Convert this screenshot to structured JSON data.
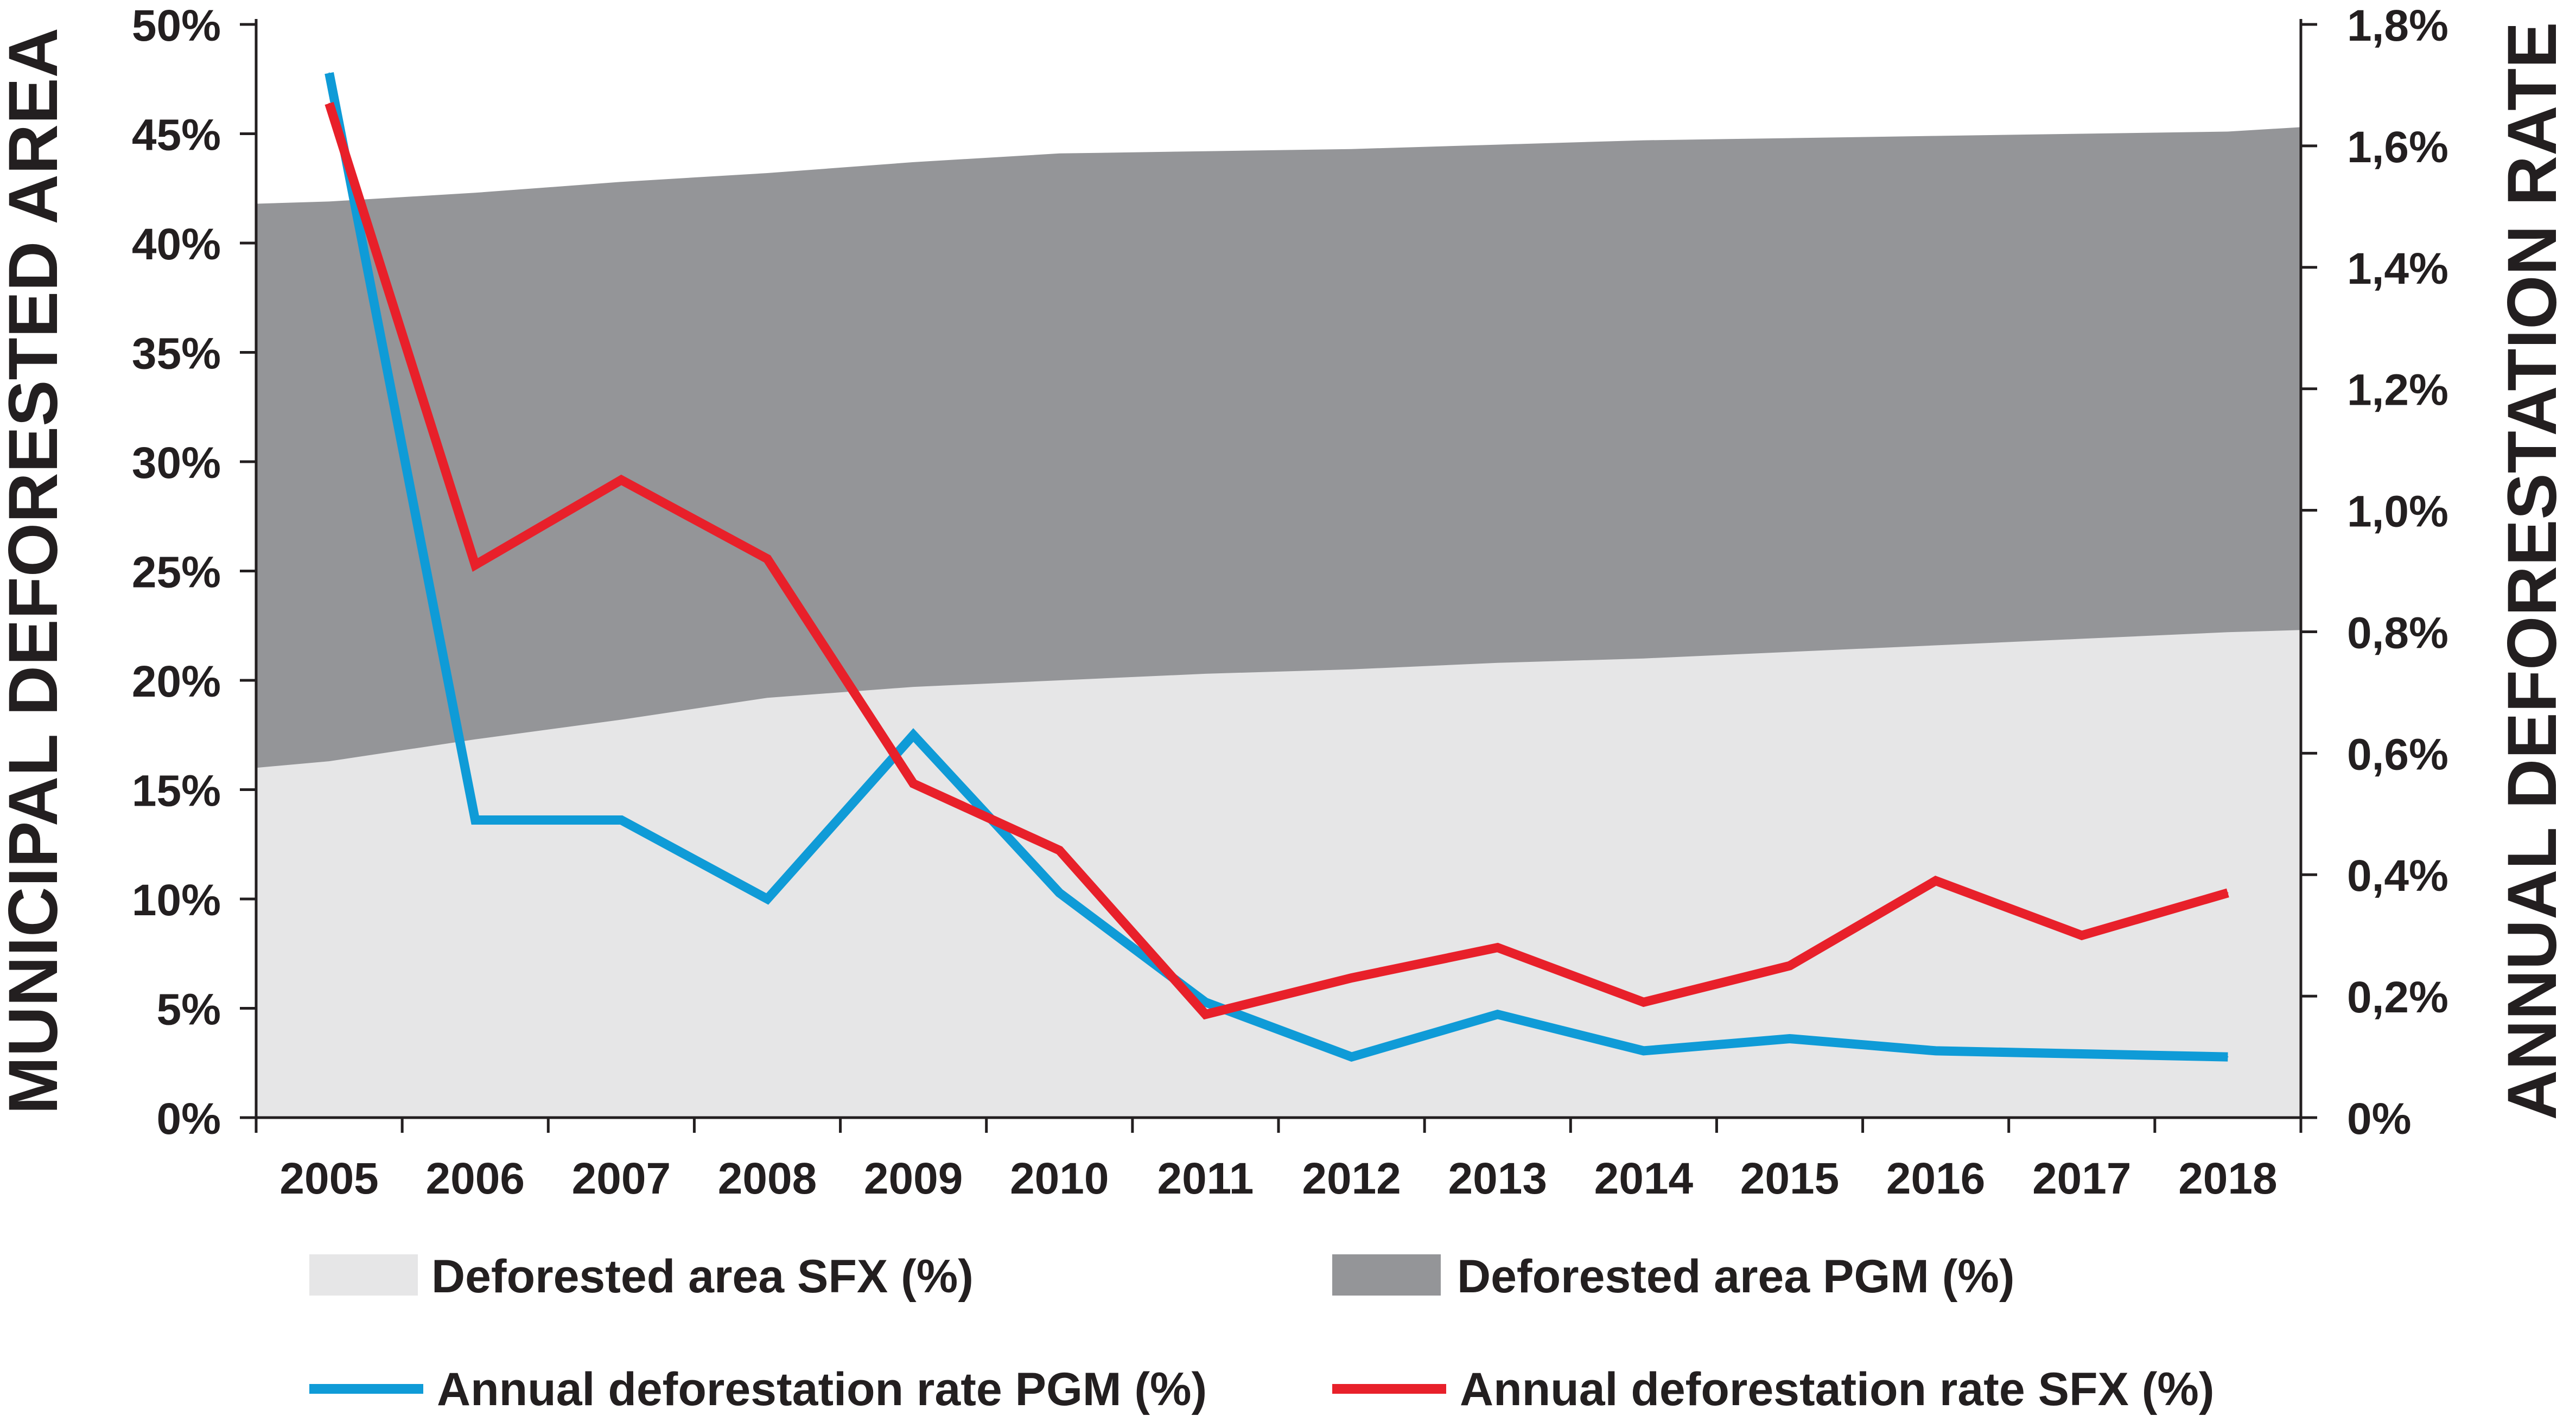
{
  "chart_data": {
    "type": "area+line",
    "x": [
      "2005",
      "2006",
      "2007",
      "2008",
      "2009",
      "2010",
      "2011",
      "2012",
      "2013",
      "2014",
      "2015",
      "2016",
      "2017",
      "2018"
    ],
    "left_axis": {
      "label": "MUNICIPAL DEFORESTED AREA",
      "ticks": [
        "0%",
        "5%",
        "10%",
        "15%",
        "20%",
        "25%",
        "30%",
        "35%",
        "40%",
        "45%",
        "50%"
      ],
      "range": [
        0,
        50
      ]
    },
    "right_axis": {
      "label": "ANNUAL DEFORESTATION RATE",
      "ticks": [
        "0%",
        "0,2%",
        "0,4%",
        "0,6%",
        "0,8%",
        "1,0%",
        "1,2%",
        "1,4%",
        "1,6%",
        "1,8%"
      ],
      "range": [
        0,
        1.8
      ]
    },
    "series": [
      {
        "name": "Deforested area SFX (%)",
        "kind": "area",
        "axis": "left",
        "color": "#e6e6e7",
        "start_value": 16.0,
        "end_value": 22.3,
        "values": [
          16.3,
          17.3,
          18.2,
          19.2,
          19.7,
          20.0,
          20.3,
          20.5,
          20.8,
          21.0,
          21.3,
          21.6,
          21.9,
          22.2
        ]
      },
      {
        "name": "Deforested area PGM (%)",
        "kind": "area",
        "axis": "left",
        "color": "#949598",
        "start_value": 41.8,
        "end_value": 45.3,
        "values": [
          41.9,
          42.3,
          42.8,
          43.2,
          43.7,
          44.1,
          44.2,
          44.3,
          44.5,
          44.7,
          44.8,
          44.9,
          45.0,
          45.1
        ]
      },
      {
        "name": "Annual deforestation rate PGM (%)",
        "kind": "line",
        "axis": "right",
        "color": "#0f9bd7",
        "values": [
          1.72,
          0.49,
          0.49,
          0.36,
          0.63,
          0.37,
          0.19,
          0.1,
          0.17,
          0.11,
          0.13,
          0.11,
          0.105,
          0.1
        ]
      },
      {
        "name": "Annual deforestation rate SFX (%)",
        "kind": "line",
        "axis": "right",
        "color": "#e8202a",
        "values": [
          1.67,
          0.91,
          1.05,
          0.92,
          0.55,
          0.44,
          0.17,
          0.23,
          0.28,
          0.19,
          0.25,
          0.39,
          0.3,
          0.37
        ]
      }
    ],
    "legend": [
      {
        "label": "Deforested area SFX (%)",
        "symbol": "box",
        "color": "#e6e6e7"
      },
      {
        "label": "Deforested area PGM (%)",
        "symbol": "box",
        "color": "#949598"
      },
      {
        "label": "Annual deforestation rate PGM (%)",
        "symbol": "line",
        "color": "#0f9bd7"
      },
      {
        "label": "Annual deforestation rate SFX (%)",
        "symbol": "line",
        "color": "#e8202a"
      }
    ]
  }
}
